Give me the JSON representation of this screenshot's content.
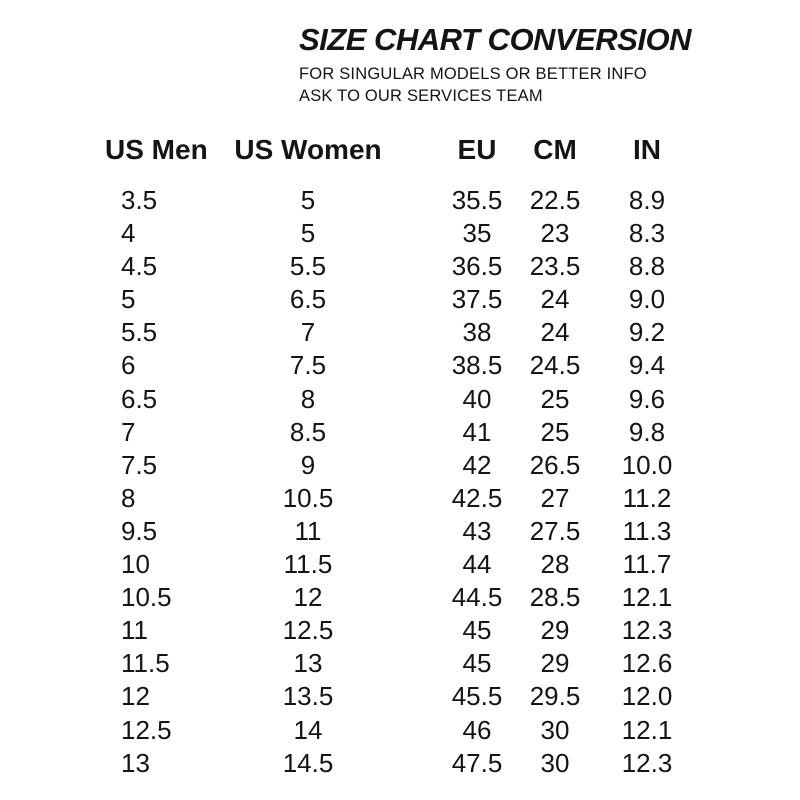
{
  "page": {
    "background_color": "#ffffff",
    "text_color": "#141414"
  },
  "header": {
    "title": "SIZE CHART CONVERSION",
    "subtitle_line1": "FOR SINGULAR MODELS OR BETTER INFO",
    "subtitle_line2": "ASK TO OUR SERVICES TEAM"
  },
  "chart_data": {
    "type": "table",
    "title": "SIZE CHART CONVERSION",
    "columns": [
      "US Men",
      "US Women",
      "EU",
      "CM",
      "IN"
    ],
    "rows": [
      [
        "3.5",
        "5",
        "35.5",
        "22.5",
        "8.9"
      ],
      [
        "4",
        "5",
        "35",
        "23",
        "8.3"
      ],
      [
        "4.5",
        "5.5",
        "36.5",
        "23.5",
        "8.8"
      ],
      [
        "5",
        "6.5",
        "37.5",
        "24",
        "9.0"
      ],
      [
        "5.5",
        "7",
        "38",
        "24",
        "9.2"
      ],
      [
        "6",
        "7.5",
        "38.5",
        "24.5",
        "9.4"
      ],
      [
        "6.5",
        "8",
        "40",
        "25",
        "9.6"
      ],
      [
        "7",
        "8.5",
        "41",
        "25",
        "9.8"
      ],
      [
        "7.5",
        "9",
        "42",
        "26.5",
        "10.0"
      ],
      [
        "8",
        "10.5",
        "42.5",
        "27",
        "11.2"
      ],
      [
        "9.5",
        "11",
        "43",
        "27.5",
        "11.3"
      ],
      [
        "10",
        "11.5",
        "44",
        "28",
        "11.7"
      ],
      [
        "10.5",
        "12",
        "44.5",
        "28.5",
        "12.1"
      ],
      [
        "11",
        "12.5",
        "45",
        "29",
        "12.3"
      ],
      [
        "11.5",
        "13",
        "45",
        "29",
        "12.6"
      ],
      [
        "12",
        "13.5",
        "45.5",
        "29.5",
        "12.0"
      ],
      [
        "12.5",
        "14",
        "46",
        "30",
        "12.1"
      ],
      [
        "13",
        "14.5",
        "47.5",
        "30",
        "12.3"
      ]
    ]
  }
}
